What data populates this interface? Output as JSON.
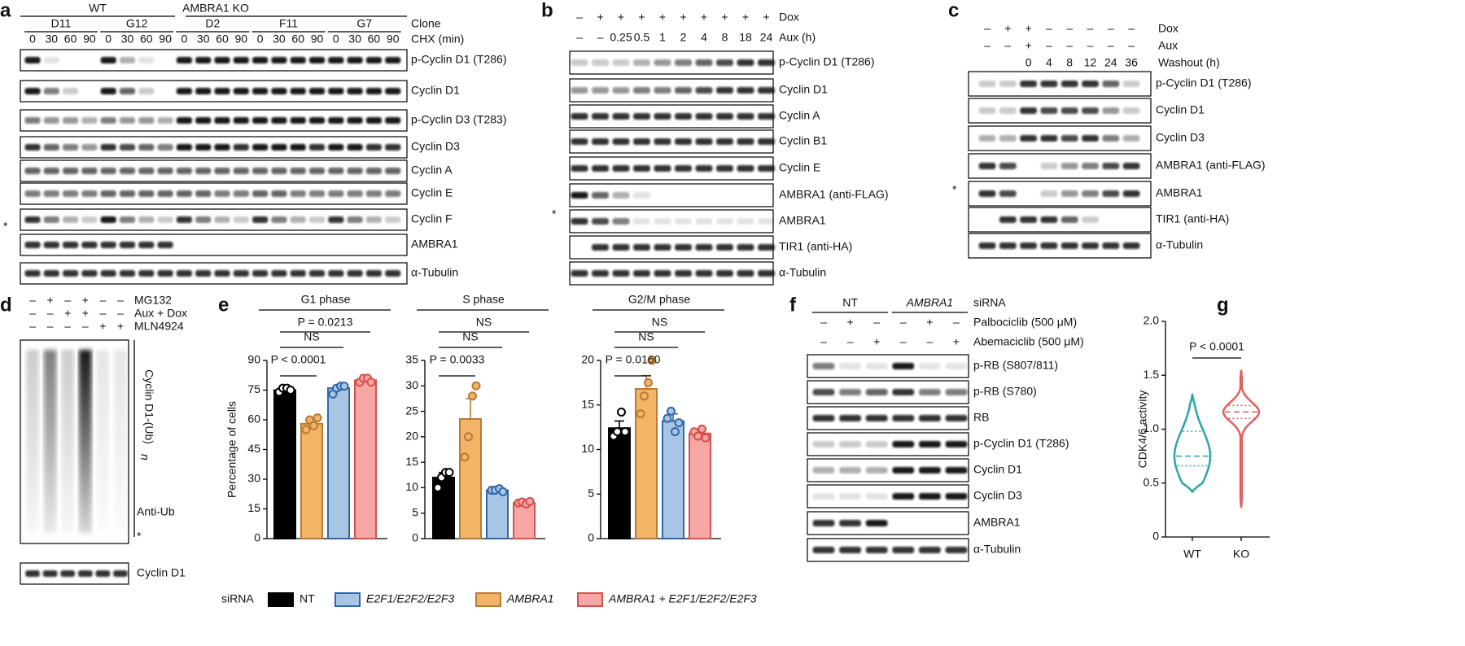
{
  "figure_labels": [
    "a",
    "b",
    "c",
    "d",
    "e",
    "f",
    "g"
  ],
  "panel_a": {
    "genotypes": [
      "WT",
      "AMBRA1 KO"
    ],
    "clone_label": "Clone",
    "clones": [
      "D11",
      "G12",
      "D2",
      "F11",
      "G7"
    ],
    "treatment_label": "CHX (min)",
    "chx": [
      0,
      30,
      60,
      90
    ],
    "antibodies": [
      "p-Cyclin D1 (T286)",
      "Cyclin D1",
      "p-Cyclin D3 (T283)",
      "Cyclin D3",
      "Cyclin A",
      "Cyclin E",
      "Cyclin F",
      "AMBRA1",
      "α-Tubulin"
    ],
    "marker": "*"
  },
  "panel_b": {
    "conditions": [
      {
        "label": "Dox",
        "lanes": [
          "–",
          "+",
          "+",
          "+",
          "+",
          "+",
          "+",
          "+",
          "+",
          "+"
        ]
      },
      {
        "label": "Aux (h)",
        "lanes": [
          "–",
          "–",
          0.25,
          0.5,
          1,
          2,
          4,
          8,
          18,
          24
        ]
      }
    ],
    "antibodies": [
      "p-Cyclin D1 (T286)",
      "Cyclin D1",
      "Cyclin A",
      "Cyclin B1",
      "Cyclin E",
      "AMBRA1 (anti-FLAG)",
      "AMBRA1",
      "TIR1 (anti-HA)",
      "α-Tubulin"
    ],
    "marker": "*"
  },
  "panel_c": {
    "conditions": [
      {
        "label": "Dox",
        "lanes": [
          "–",
          "+",
          "+",
          "–",
          "–",
          "–",
          "–",
          "–"
        ]
      },
      {
        "label": "Aux",
        "lanes": [
          "–",
          "–",
          "+",
          "–",
          "–",
          "–",
          "–",
          "–"
        ]
      },
      {
        "label": "Washout (h)",
        "lanes": [
          null,
          null,
          0,
          4,
          8,
          12,
          24,
          36
        ]
      }
    ],
    "antibodies": [
      "p-Cyclin D1 (T286)",
      "Cyclin D1",
      "Cyclin D3",
      "AMBRA1 (anti-FLAG)",
      "AMBRA1",
      "TIR1 (anti-HA)",
      "α-Tubulin"
    ],
    "marker": "*"
  },
  "panel_d": {
    "conditions": [
      {
        "label": "MG132",
        "lanes": [
          "–",
          "+",
          "–",
          "+",
          "–",
          "–"
        ]
      },
      {
        "label": "Aux + Dox",
        "lanes": [
          "–",
          "–",
          "+",
          "+",
          "–",
          "–"
        ]
      },
      {
        "label": "MLN4924",
        "lanes": [
          "–",
          "–",
          "–",
          "–",
          "+",
          "+"
        ]
      }
    ],
    "ub_label": "Cyclin D1-(Ub)",
    "ub_subscript": "n",
    "blot_label": "Anti-Ub",
    "marker": "*",
    "antibody": "Cyclin D1"
  },
  "panel_f": {
    "groups": [
      "NT",
      "AMBRA1"
    ],
    "group_label": "siRNA",
    "conditions": [
      {
        "label": "Palbociclib (500 μM)",
        "lanes": [
          "–",
          "+",
          "–",
          "–",
          "+",
          "–"
        ]
      },
      {
        "label": "Abemaciclib (500 μM)",
        "lanes": [
          "–",
          "–",
          "+",
          "–",
          "–",
          "+"
        ]
      }
    ],
    "antibodies": [
      "p-RB (S807/811)",
      "p-RB (S780)",
      "RB",
      "p-Cyclin D1 (T286)",
      "Cyclin D1",
      "Cyclin D3",
      "AMBRA1",
      "α-Tubulin"
    ]
  },
  "chart_data": [
    {
      "type": "bar",
      "title": "G1 phase",
      "ylabel": "Percentage of cells",
      "legend_title": "siRNA",
      "series": [
        {
          "name": "NT",
          "color": "#000000",
          "edge": "#000000",
          "point_fill": "#ffffff",
          "values": [
            75
          ],
          "errors": [
            1
          ],
          "points": [
            74,
            76,
            76,
            75
          ]
        },
        {
          "name": "AMBRA1",
          "color": "#f2b467",
          "edge": "#b97a35",
          "point_fill": "#f2b467",
          "values": [
            58
          ],
          "errors": [
            2
          ],
          "points": [
            55,
            60,
            57,
            61
          ]
        },
        {
          "name": "E2F1/E2F2/E2F3",
          "color": "#a9c5e6",
          "edge": "#2f68a6",
          "point_fill": "#a9c5e6",
          "values": [
            76
          ],
          "errors": [
            1.5
          ],
          "points": [
            73,
            76,
            77,
            77
          ]
        },
        {
          "name": "AMBRA1 + E2F1/E2F2/E2F3",
          "color": "#f4a7a4",
          "edge": "#d6504b",
          "point_fill": "#f4a7a4",
          "values": [
            80
          ],
          "errors": [
            1
          ],
          "points": [
            79,
            81,
            81,
            79
          ]
        }
      ],
      "ylim": [
        0,
        90
      ],
      "yticks": [
        0,
        15,
        30,
        45,
        60,
        75,
        90
      ],
      "annotations": [
        "P = 0.0213",
        "NS",
        "P < 0.0001"
      ]
    },
    {
      "type": "bar",
      "title": "S phase",
      "series": [
        {
          "color": "#000000",
          "edge": "#000000",
          "point_fill": "#ffffff",
          "values": [
            12
          ],
          "errors": [
            1
          ],
          "points": [
            10,
            12,
            13,
            13
          ]
        },
        {
          "color": "#f2b467",
          "edge": "#b97a35",
          "point_fill": "#f2b467",
          "values": [
            23.5
          ],
          "errors": [
            4
          ],
          "points": [
            16,
            20,
            28,
            30
          ]
        },
        {
          "color": "#a9c5e6",
          "edge": "#2f68a6",
          "point_fill": "#a9c5e6",
          "values": [
            9.5
          ],
          "errors": [
            0.3
          ],
          "points": [
            9.5,
            9.5,
            9.8,
            9.2
          ]
        },
        {
          "color": "#f4a7a4",
          "edge": "#d6504b",
          "point_fill": "#f4a7a4",
          "values": [
            7
          ],
          "errors": [
            0.3
          ],
          "points": [
            7,
            7.2,
            6.8,
            7.3
          ]
        }
      ],
      "ylim": [
        0,
        35
      ],
      "yticks": [
        0,
        5,
        10,
        15,
        20,
        25,
        30,
        35
      ],
      "annotations": [
        "NS",
        "NS",
        "P = 0.0033"
      ]
    },
    {
      "type": "bar",
      "title": "G2/M phase",
      "series": [
        {
          "color": "#000000",
          "edge": "#000000",
          "point_fill": "#ffffff",
          "values": [
            12.4
          ],
          "errors": [
            0.8
          ],
          "points": [
            11.5,
            12,
            14.2,
            12
          ]
        },
        {
          "color": "#f2b467",
          "edge": "#b97a35",
          "point_fill": "#f2b467",
          "values": [
            16.8
          ],
          "errors": [
            1.5
          ],
          "points": [
            14,
            16,
            17.5,
            20
          ]
        },
        {
          "color": "#a9c5e6",
          "edge": "#2f68a6",
          "point_fill": "#a9c5e6",
          "values": [
            13.2
          ],
          "errors": [
            0.8
          ],
          "points": [
            13.5,
            14.3,
            12,
            13
          ]
        },
        {
          "color": "#f4a7a4",
          "edge": "#d6504b",
          "point_fill": "#f4a7a4",
          "values": [
            11.8
          ],
          "errors": [
            0.5
          ],
          "points": [
            12,
            11.5,
            12.3,
            11.3
          ]
        }
      ],
      "ylim": [
        0,
        20
      ],
      "yticks": [
        0,
        5,
        10,
        15,
        20
      ],
      "annotations": [
        "NS",
        "NS",
        "P = 0.0160"
      ]
    },
    {
      "type": "violin",
      "ylabel": "CDK4/6 activity",
      "categories": [
        "WT",
        "KO"
      ],
      "colors": [
        "#2aa6a6",
        "#e0605c"
      ],
      "min": [
        0.42,
        0.27
      ],
      "q1": [
        0.66,
        1.1
      ],
      "median": [
        0.75,
        1.16
      ],
      "q3": [
        0.98,
        1.22
      ],
      "max": [
        1.32,
        1.55
      ],
      "ylim": [
        0,
        2
      ],
      "yticks": [
        0,
        0.5,
        {
          "value": 1,
          "label": "1.0"
        },
        1.5,
        {
          "value": 2,
          "label": "2.0"
        }
      ],
      "annotation": "P < 0.0001"
    }
  ]
}
